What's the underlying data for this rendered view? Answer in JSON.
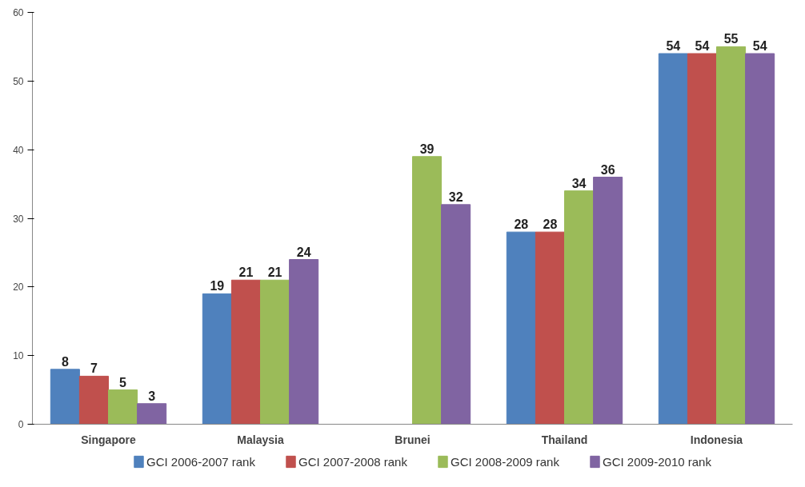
{
  "chart_data": {
    "type": "bar",
    "categories": [
      "Singapore",
      "Malaysia",
      "Brunei",
      "Thailand",
      "Indonesia"
    ],
    "series": [
      {
        "name": "GCI 2006-2007 rank",
        "color": "#4f81bd",
        "values": [
          8,
          19,
          null,
          28,
          54
        ]
      },
      {
        "name": "GCI 2007-2008 rank",
        "color": "#c0504d",
        "values": [
          7,
          21,
          null,
          28,
          54
        ]
      },
      {
        "name": "GCI 2008-2009 rank",
        "color": "#9bbb59",
        "values": [
          5,
          21,
          39,
          34,
          55
        ]
      },
      {
        "name": "GCI 2009-2010 rank",
        "color": "#8064a2",
        "values": [
          3,
          24,
          32,
          36,
          54
        ]
      }
    ],
    "ylim": [
      0,
      60
    ],
    "yticks": [
      0,
      10,
      20,
      30,
      40,
      50,
      60
    ],
    "data_labels": true,
    "grid": false,
    "legend": "bottom"
  }
}
